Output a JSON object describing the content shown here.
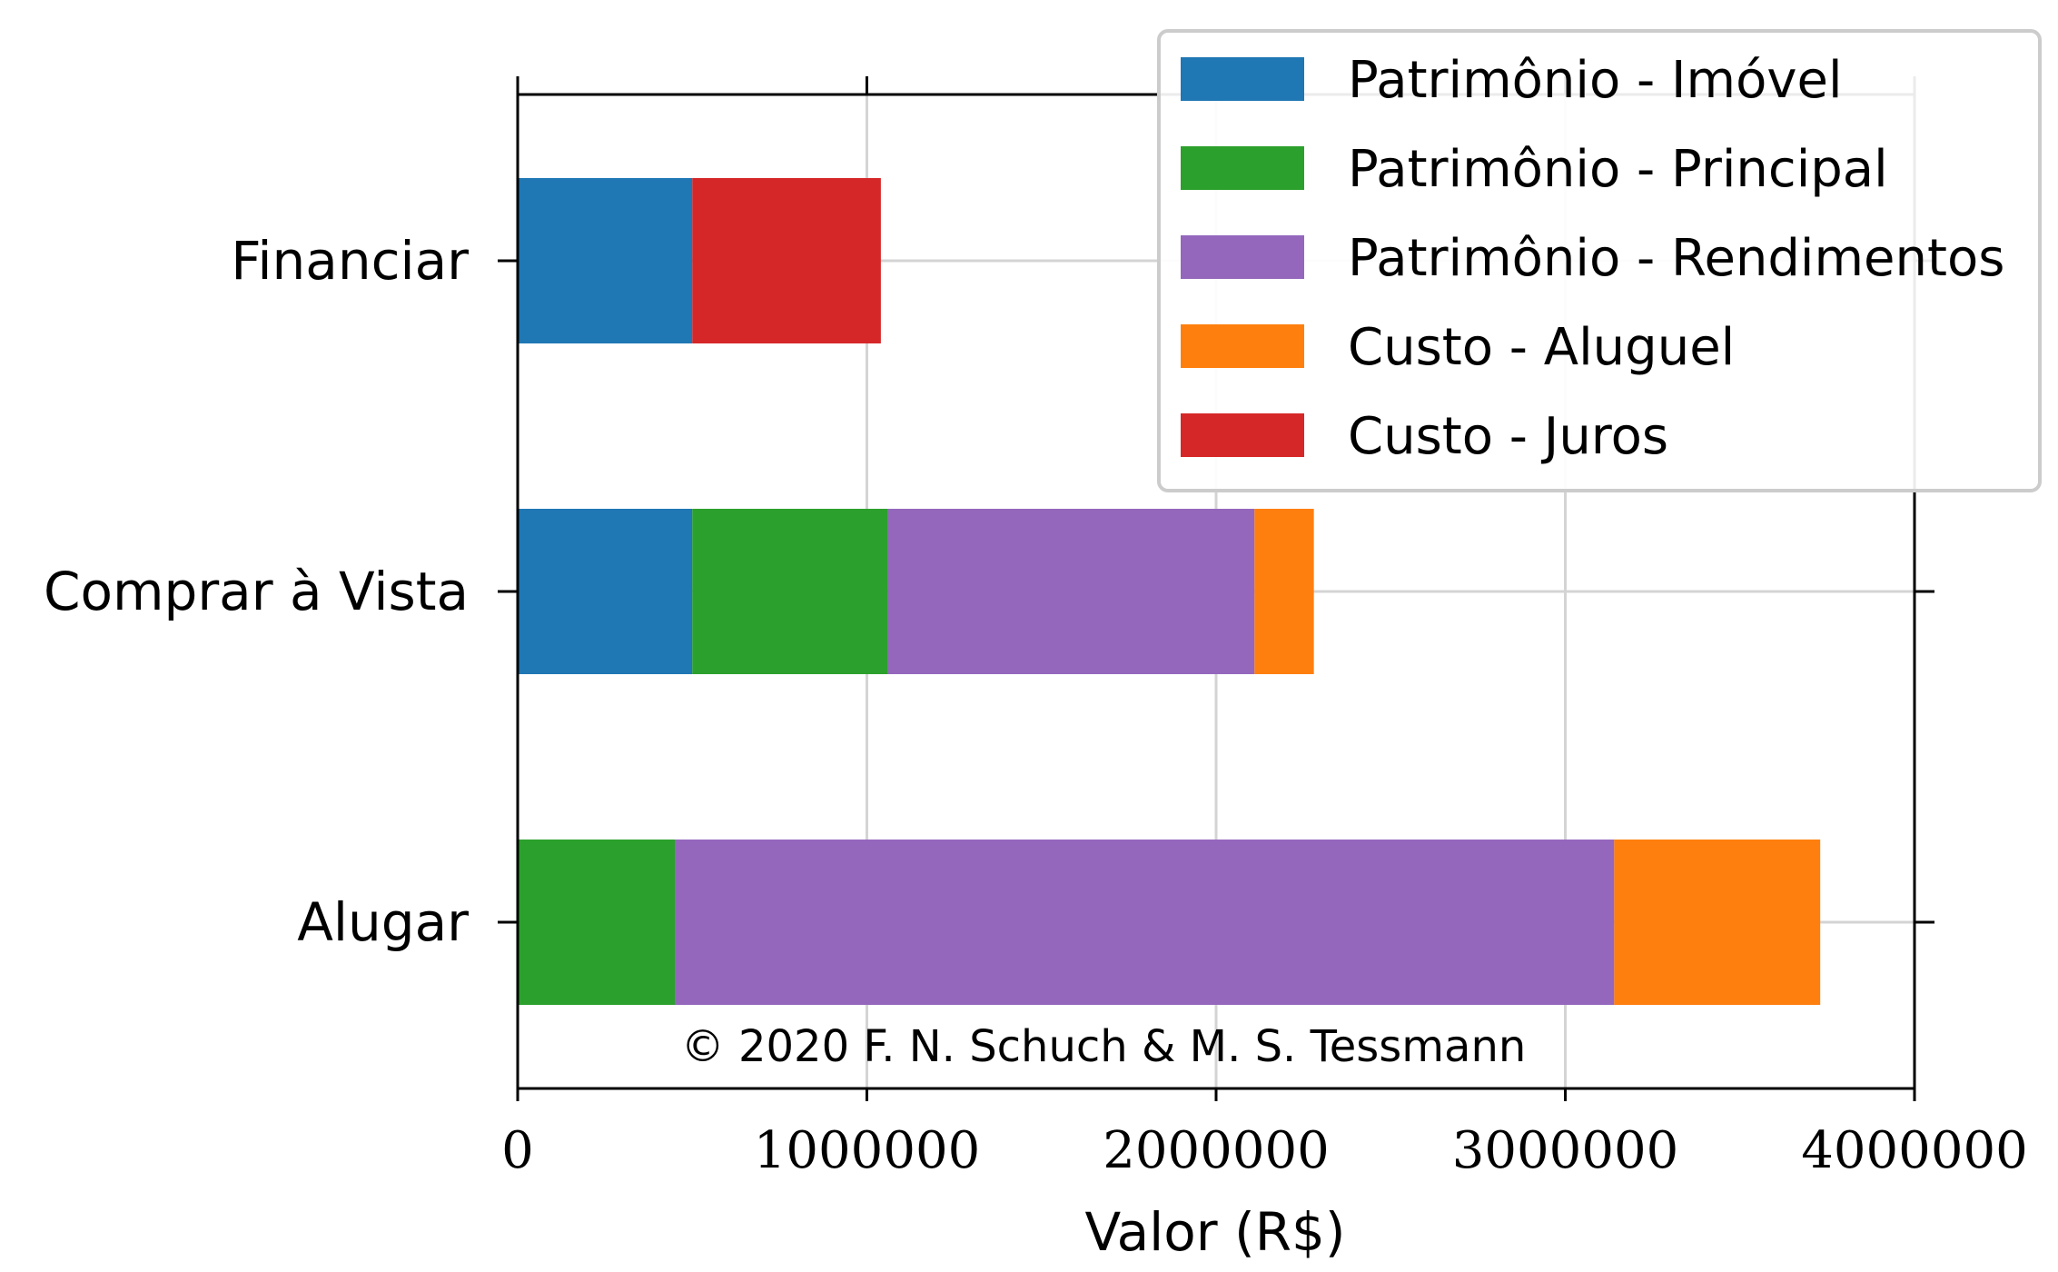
{
  "chart_data": {
    "type": "bar",
    "orientation": "horizontal",
    "stacked": true,
    "categories": [
      "Financiar",
      "Comprar à Vista",
      "Alugar"
    ],
    "series": [
      {
        "name": "Patrimônio - Imóvel",
        "color": "#1f77b4",
        "values": [
          500000,
          500000,
          0
        ]
      },
      {
        "name": "Patrimônio - Principal",
        "color": "#2ca02c",
        "values": [
          0,
          560000,
          450000
        ]
      },
      {
        "name": "Patrimônio - Rendimentos",
        "color": "#9467bd",
        "values": [
          0,
          1050000,
          2690000
        ]
      },
      {
        "name": "Custo - Aluguel",
        "color": "#ff7f0e",
        "values": [
          0,
          170000,
          590000
        ]
      },
      {
        "name": "Custo - Juros",
        "color": "#d62728",
        "values": [
          540000,
          0,
          0
        ]
      }
    ],
    "xlabel": "Valor (R$)",
    "ylabel": "",
    "xlim": [
      0,
      4000000
    ],
    "xticks": [
      0,
      1000000,
      2000000,
      3000000,
      4000000
    ],
    "xtick_labels": [
      "0",
      "1000000",
      "2000000",
      "3000000",
      "4000000"
    ],
    "grid": true,
    "legend_position": "top-right",
    "annotation": "© 2020 F. N. Schuch & M. S. Tessmann"
  }
}
